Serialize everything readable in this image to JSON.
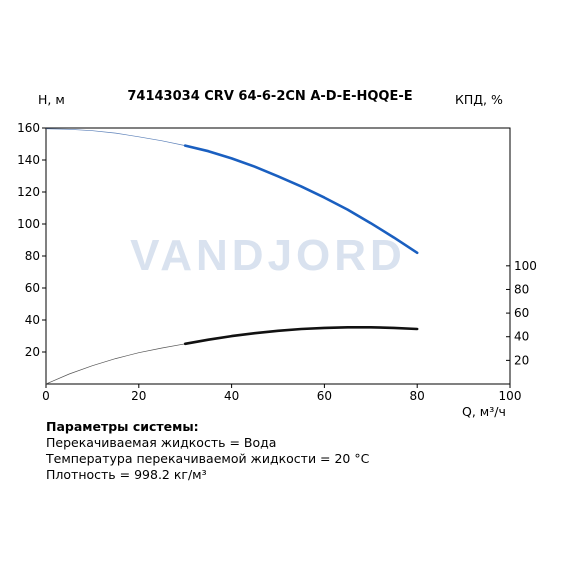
{
  "chart_data": {
    "type": "line",
    "title": "74143034 CRV 64-6-2CN A-D-E-HQQE-E",
    "xlabel": "Q, м³/ч",
    "ylabel_left": "H, м",
    "ylabel_right": "КПД, %",
    "watermark": "VANDJORD",
    "x_range": [
      0,
      100
    ],
    "y_left_range": [
      0,
      160
    ],
    "y_right_range": [
      0,
      110
    ],
    "x_ticks": [
      "0",
      "20",
      "40",
      "60",
      "80",
      "100"
    ],
    "y_left_ticks": [
      "20",
      "40",
      "60",
      "80",
      "100",
      "120",
      "140",
      "160"
    ],
    "y_right_ticks": [
      "20",
      "40",
      "60",
      "80",
      "100"
    ],
    "grid": false,
    "series": [
      {
        "axis": "left",
        "color": "#1a5fc0",
        "extrapolation_color": "#5a7fb8",
        "operating_range": [
          30,
          80
        ],
        "x": [
          0,
          5,
          10,
          15,
          20,
          25,
          30,
          35,
          40,
          45,
          50,
          55,
          60,
          65,
          70,
          75,
          80
        ],
        "values": [
          159.5,
          159.2,
          158.3,
          156.8,
          154.5,
          152.0,
          149.0,
          145.5,
          141.0,
          135.8,
          129.8,
          123.5,
          116.5,
          109.0,
          100.5,
          91.5,
          82.0
        ]
      },
      {
        "axis": "right",
        "color": "#111111",
        "extrapolation_color": "#555555",
        "operating_range": [
          30,
          80
        ],
        "x": [
          0,
          5,
          10,
          15,
          20,
          25,
          30,
          35,
          40,
          45,
          50,
          55,
          60,
          65,
          70,
          75,
          80
        ],
        "values": [
          0,
          8.5,
          15.5,
          21.5,
          26.5,
          30.5,
          34.0,
          37.5,
          40.5,
          43.0,
          45.0,
          46.5,
          47.5,
          48.0,
          48.0,
          47.5,
          46.5
        ]
      }
    ]
  },
  "parameters": {
    "heading": "Параметры системы:",
    "lines": [
      "Перекачиваемая жидкость = Вода",
      "Температура перекачиваемой жидкости = 20 °C",
      "Плотность = 998.2 кг/м³"
    ]
  }
}
